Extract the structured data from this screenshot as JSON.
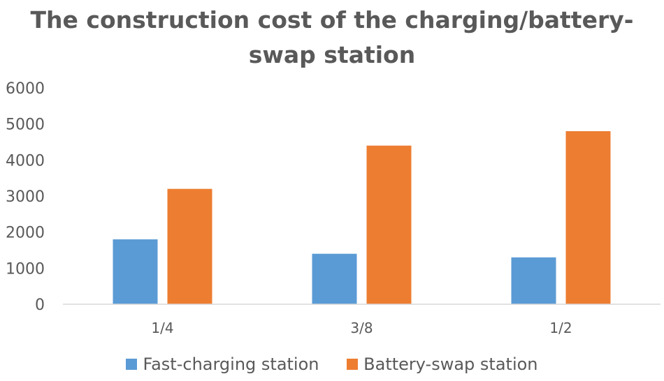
{
  "chart_data": {
    "type": "bar",
    "title_line1": "The construction cost of the charging/battery-",
    "title_line2": "swap station",
    "categories": [
      "1/4",
      "3/8",
      "1/2"
    ],
    "series": [
      {
        "name": "Fast-charging station",
        "color": "#5b9bd5",
        "values": [
          1800,
          1400,
          1300
        ]
      },
      {
        "name": "Battery-swap station",
        "color": "#ed7d31",
        "values": [
          3200,
          4400,
          4800
        ]
      }
    ],
    "y_ticks": [
      "0",
      "1000",
      "2000",
      "3000",
      "4000",
      "5000",
      "6000"
    ],
    "ylim": [
      0,
      6000
    ],
    "grid": false,
    "legend_position": "bottom"
  }
}
